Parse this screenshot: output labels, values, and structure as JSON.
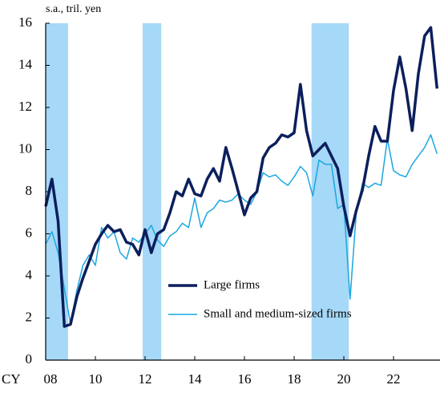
{
  "chart_data": {
    "type": "line",
    "y_axis_label": "s.a., tril. yen",
    "x_unit_label": "CY",
    "x": [
      2008,
      2008.25,
      2008.5,
      2008.75,
      2009,
      2009.25,
      2009.5,
      2009.75,
      2010,
      2010.25,
      2010.5,
      2010.75,
      2011,
      2011.25,
      2011.5,
      2011.75,
      2012,
      2012.25,
      2012.5,
      2012.75,
      2013,
      2013.25,
      2013.5,
      2013.75,
      2014,
      2014.25,
      2014.5,
      2014.75,
      2015,
      2015.25,
      2015.5,
      2015.75,
      2016,
      2016.25,
      2016.5,
      2016.75,
      2017,
      2017.25,
      2017.5,
      2017.75,
      2018,
      2018.25,
      2018.5,
      2018.75,
      2019,
      2019.25,
      2019.5,
      2019.75,
      2020,
      2020.25,
      2020.5,
      2020.75,
      2021,
      2021.25,
      2021.5,
      2021.75,
      2022,
      2022.25,
      2022.5,
      2022.75,
      2023,
      2023.25,
      2023.5,
      2023.75
    ],
    "series": [
      {
        "name": "Large firms",
        "color": "#0b1f5c",
        "width": 3.5,
        "values": [
          7.3,
          8.6,
          6.6,
          1.6,
          1.7,
          3.0,
          3.9,
          4.7,
          5.5,
          6.0,
          6.4,
          6.1,
          6.2,
          5.6,
          5.5,
          5.0,
          6.2,
          5.1,
          6.0,
          6.2,
          7.0,
          8.0,
          7.8,
          8.6,
          7.9,
          7.8,
          8.6,
          9.1,
          8.5,
          10.1,
          9.1,
          8.0,
          6.9,
          7.7,
          8.0,
          9.6,
          10.1,
          10.3,
          10.7,
          10.6,
          10.8,
          13.1,
          10.9,
          9.7,
          10.0,
          10.3,
          9.7,
          9.1,
          7.3,
          5.9,
          7.1,
          8.1,
          9.7,
          11.1,
          10.4,
          10.4,
          12.8,
          14.4,
          12.9,
          10.9,
          13.6,
          15.4,
          15.8,
          12.9
        ]
      },
      {
        "name": "Small and medium-sized firms",
        "color": "#1aa7e0",
        "width": 1.5,
        "values": [
          5.5,
          6.1,
          5.1,
          3.4,
          1.7,
          3.3,
          4.5,
          5.0,
          4.5,
          6.3,
          5.8,
          6.1,
          5.1,
          4.8,
          5.8,
          5.6,
          6.0,
          6.4,
          5.7,
          5.4,
          5.9,
          6.1,
          6.5,
          6.3,
          7.7,
          6.3,
          7.0,
          7.2,
          7.6,
          7.5,
          7.6,
          7.9,
          7.6,
          7.4,
          8.0,
          8.9,
          8.7,
          8.8,
          8.5,
          8.3,
          8.7,
          9.2,
          8.9,
          7.8,
          9.5,
          9.3,
          9.3,
          7.2,
          7.4,
          2.9,
          7.0,
          8.4,
          8.2,
          8.4,
          8.3,
          10.5,
          9.0,
          8.8,
          8.7,
          9.3,
          9.7,
          10.1,
          10.7,
          9.8
        ]
      }
    ],
    "shaded_periods": [
      [
        2008.0,
        2008.9
      ],
      [
        2011.9,
        2012.65
      ],
      [
        2018.7,
        2020.2
      ]
    ],
    "shade_color": "#a6d8f7",
    "xlim": [
      2008,
      2023.87
    ],
    "xticks": [
      {
        "value": 2008,
        "label": "08"
      },
      {
        "value": 2010,
        "label": "10"
      },
      {
        "value": 2012,
        "label": "12"
      },
      {
        "value": 2014,
        "label": "14"
      },
      {
        "value": 2016,
        "label": "16"
      },
      {
        "value": 2018,
        "label": "18"
      },
      {
        "value": 2020,
        "label": "20"
      },
      {
        "value": 2022,
        "label": "22"
      }
    ],
    "ylim": [
      0,
      16
    ],
    "yticks": [
      0,
      2,
      4,
      6,
      8,
      10,
      12,
      14,
      16
    ]
  }
}
